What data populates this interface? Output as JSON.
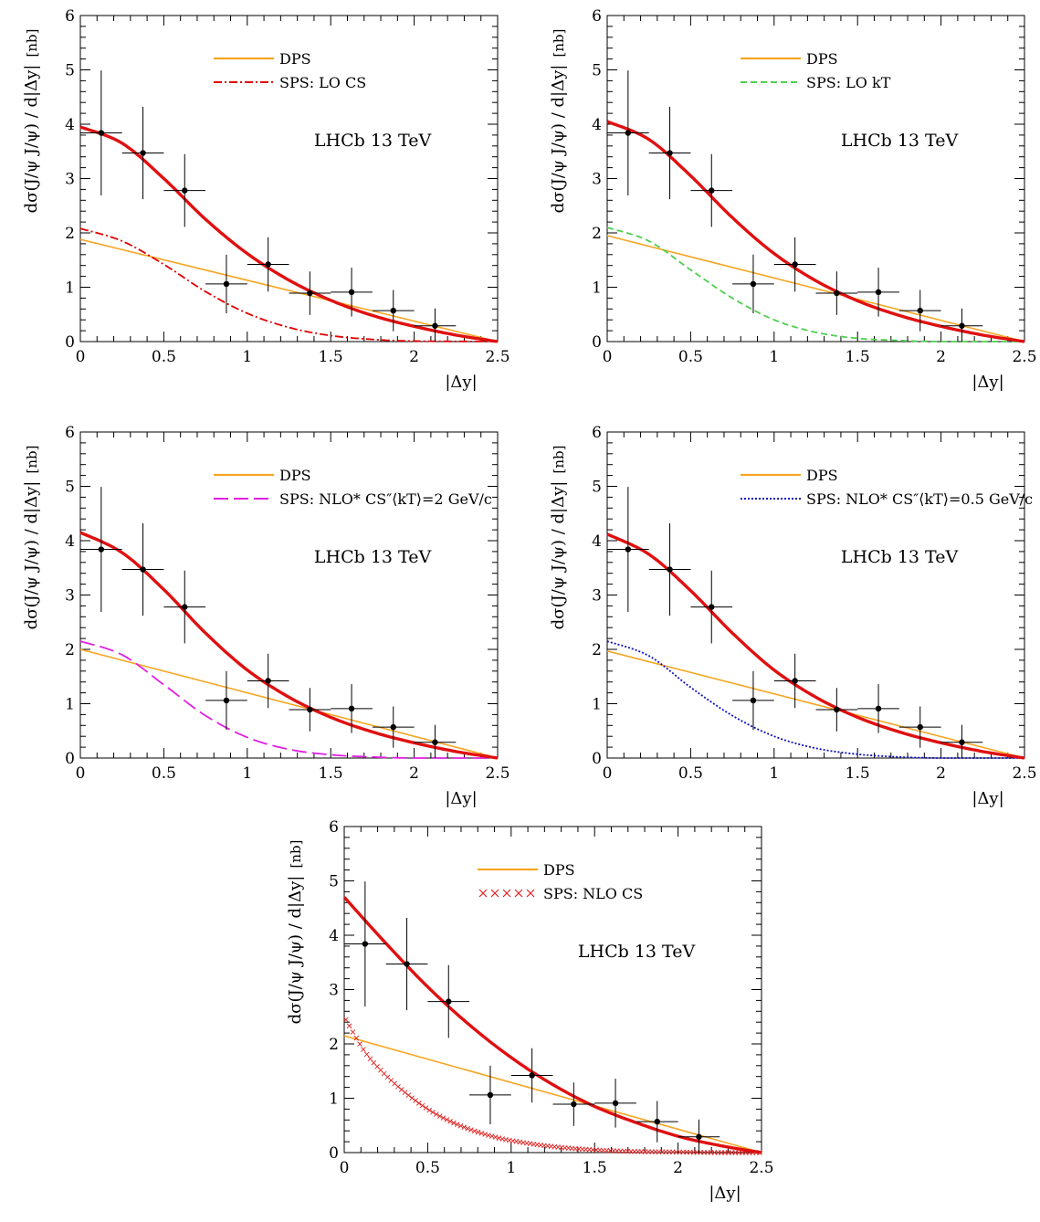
{
  "chart_data": [
    {
      "type": "line",
      "ylabel": "dσ(J/ψ J/ψ) / d|Δy|",
      "yunit": "[nb]",
      "xlabel": "|Δy|",
      "annotation": "LHCb 13 TeV",
      "xlim": [
        0,
        2.5
      ],
      "ylim": [
        0,
        6
      ],
      "xticks": [
        "0",
        "0.5",
        "1",
        "1.5",
        "2",
        "2.5"
      ],
      "yticks": [
        "0",
        "1",
        "2",
        "3",
        "4",
        "5",
        "6"
      ],
      "legend": [
        {
          "label": "DPS",
          "color": "#f5a623",
          "style": "solid"
        },
        {
          "label": "SPS: LO CS",
          "color": "#e00000",
          "style": "dashdot"
        }
      ],
      "data_points": {
        "x": [
          0.125,
          0.375,
          0.625,
          0.875,
          1.125,
          1.375,
          1.625,
          1.875,
          2.125
        ],
        "y": [
          3.84,
          3.47,
          2.78,
          1.06,
          1.42,
          0.89,
          0.91,
          0.57,
          0.29
        ],
        "yerr": [
          1.15,
          0.85,
          0.67,
          0.54,
          0.5,
          0.4,
          0.45,
          0.38,
          0.32
        ],
        "xerr": 0.125
      },
      "series": [
        {
          "name": "Total",
          "color": "#e01010",
          "style": "thick",
          "x": [
            0,
            0.25,
            0.5,
            0.75,
            1.0,
            1.25,
            1.5,
            1.75,
            2.0,
            2.25,
            2.5
          ],
          "y": [
            3.95,
            3.65,
            3.0,
            2.25,
            1.62,
            1.13,
            0.76,
            0.48,
            0.28,
            0.12,
            0.0
          ]
        },
        {
          "name": "DPS",
          "color": "#f5a623",
          "style": "solid",
          "x": [
            0,
            2.5
          ],
          "y": [
            1.88,
            0.0
          ]
        },
        {
          "name": "SPS: LO CS",
          "color": "#e00000",
          "style": "dashdot",
          "x": [
            0,
            0.25,
            0.5,
            0.75,
            1.0,
            1.25,
            1.5,
            1.75,
            2.0,
            2.5
          ],
          "y": [
            2.08,
            1.85,
            1.42,
            0.92,
            0.52,
            0.26,
            0.11,
            0.04,
            0.01,
            0.0
          ]
        }
      ]
    },
    {
      "type": "line",
      "ylabel": "dσ(J/ψ J/ψ) / d|Δy|",
      "yunit": "[nb]",
      "xlabel": "|Δy|",
      "annotation": "LHCb 13 TeV",
      "xlim": [
        0,
        2.5
      ],
      "ylim": [
        0,
        6
      ],
      "xticks": [
        "0",
        "0.5",
        "1",
        "1.5",
        "2",
        "2.5"
      ],
      "yticks": [
        "0",
        "1",
        "2",
        "3",
        "4",
        "5",
        "6"
      ],
      "legend": [
        {
          "label": "DPS",
          "color": "#f5a623",
          "style": "solid"
        },
        {
          "label": "SPS: LO kT",
          "color": "#4fcf4f",
          "style": "dashed"
        }
      ],
      "data_points": {
        "x": [
          0.125,
          0.375,
          0.625,
          0.875,
          1.125,
          1.375,
          1.625,
          1.875,
          2.125
        ],
        "y": [
          3.84,
          3.47,
          2.78,
          1.06,
          1.42,
          0.89,
          0.91,
          0.57,
          0.29
        ],
        "yerr": [
          1.15,
          0.85,
          0.67,
          0.54,
          0.5,
          0.4,
          0.45,
          0.38,
          0.32
        ],
        "xerr": 0.125
      },
      "series": [
        {
          "name": "Total",
          "color": "#e01010",
          "style": "thick",
          "x": [
            0,
            0.25,
            0.5,
            0.75,
            1.0,
            1.25,
            1.5,
            1.75,
            2.0,
            2.25,
            2.5
          ],
          "y": [
            4.05,
            3.72,
            3.05,
            2.28,
            1.62,
            1.12,
            0.75,
            0.48,
            0.28,
            0.12,
            0.0
          ]
        },
        {
          "name": "DPS",
          "color": "#f5a623",
          "style": "solid",
          "x": [
            0,
            2.5
          ],
          "y": [
            1.95,
            0.0
          ]
        },
        {
          "name": "SPS: LO kT",
          "color": "#4fcf4f",
          "style": "dashed",
          "x": [
            0,
            0.25,
            0.5,
            0.75,
            1.0,
            1.25,
            1.5,
            1.75,
            2.0,
            2.5
          ],
          "y": [
            2.1,
            1.85,
            1.32,
            0.8,
            0.4,
            0.17,
            0.06,
            0.02,
            0.0,
            0.0
          ]
        }
      ]
    },
    {
      "type": "line",
      "ylabel": "dσ(J/ψ J/ψ) / d|Δy|",
      "yunit": "[nb]",
      "xlabel": "|Δy|",
      "annotation": "LHCb 13 TeV",
      "xlim": [
        0,
        2.5
      ],
      "ylim": [
        0,
        6
      ],
      "xticks": [
        "0",
        "0.5",
        "1",
        "1.5",
        "2",
        "2.5"
      ],
      "yticks": [
        "0",
        "1",
        "2",
        "3",
        "4",
        "5",
        "6"
      ],
      "legend": [
        {
          "label": "DPS",
          "color": "#f5a623",
          "style": "solid"
        },
        {
          "label": "SPS: NLO* CS″⟨kT⟩=2 GeV/c",
          "color": "#e020e0",
          "style": "longdash"
        }
      ],
      "data_points": {
        "x": [
          0.125,
          0.375,
          0.625,
          0.875,
          1.125,
          1.375,
          1.625,
          1.875,
          2.125
        ],
        "y": [
          3.84,
          3.47,
          2.78,
          1.06,
          1.42,
          0.89,
          0.91,
          0.57,
          0.29
        ],
        "yerr": [
          1.15,
          0.85,
          0.67,
          0.54,
          0.5,
          0.4,
          0.45,
          0.38,
          0.32
        ],
        "xerr": 0.125
      },
      "series": [
        {
          "name": "Total",
          "color": "#e01010",
          "style": "thick",
          "x": [
            0,
            0.25,
            0.5,
            0.75,
            1.0,
            1.25,
            1.5,
            1.75,
            2.0,
            2.25,
            2.5
          ],
          "y": [
            4.15,
            3.78,
            3.1,
            2.3,
            1.62,
            1.12,
            0.75,
            0.48,
            0.28,
            0.12,
            0.0
          ]
        },
        {
          "name": "DPS",
          "color": "#f5a623",
          "style": "solid",
          "x": [
            0,
            2.5
          ],
          "y": [
            2.0,
            0.0
          ]
        },
        {
          "name": "SPS: NLO* CS″ ⟨kT⟩=2 GeV/c",
          "color": "#e020e0",
          "style": "longdash",
          "x": [
            0,
            0.25,
            0.5,
            0.75,
            1.0,
            1.25,
            1.5,
            1.75,
            2.0,
            2.5
          ],
          "y": [
            2.15,
            1.9,
            1.35,
            0.78,
            0.38,
            0.16,
            0.06,
            0.02,
            0.0,
            0.0
          ]
        }
      ]
    },
    {
      "type": "line",
      "ylabel": "dσ(J/ψ J/ψ) / d|Δy|",
      "yunit": "[nb]",
      "xlabel": "|Δy|",
      "annotation": "LHCb 13 TeV",
      "xlim": [
        0,
        2.5
      ],
      "ylim": [
        0,
        6
      ],
      "xticks": [
        "0",
        "0.5",
        "1",
        "1.5",
        "2",
        "2.5"
      ],
      "yticks": [
        "0",
        "1",
        "2",
        "3",
        "4",
        "5",
        "6"
      ],
      "legend": [
        {
          "label": "DPS",
          "color": "#f5a623",
          "style": "solid"
        },
        {
          "label": "SPS: NLO* CS″⟨kT⟩=0.5 GeV/c",
          "color": "#1010c0",
          "style": "dotted"
        }
      ],
      "data_points": {
        "x": [
          0.125,
          0.375,
          0.625,
          0.875,
          1.125,
          1.375,
          1.625,
          1.875,
          2.125
        ],
        "y": [
          3.84,
          3.47,
          2.78,
          1.06,
          1.42,
          0.89,
          0.91,
          0.57,
          0.29
        ],
        "yerr": [
          1.15,
          0.85,
          0.67,
          0.54,
          0.5,
          0.4,
          0.45,
          0.38,
          0.32
        ],
        "xerr": 0.125
      },
      "series": [
        {
          "name": "Total",
          "color": "#e01010",
          "style": "thick",
          "x": [
            0,
            0.25,
            0.5,
            0.75,
            1.0,
            1.25,
            1.5,
            1.75,
            2.0,
            2.25,
            2.5
          ],
          "y": [
            4.12,
            3.75,
            3.08,
            2.3,
            1.62,
            1.12,
            0.75,
            0.48,
            0.28,
            0.12,
            0.0
          ]
        },
        {
          "name": "DPS",
          "color": "#f5a623",
          "style": "solid",
          "x": [
            0,
            2.5
          ],
          "y": [
            1.97,
            0.0
          ]
        },
        {
          "name": "SPS: NLO* CS″ ⟨kT⟩=0.5 GeV/c",
          "color": "#1010c0",
          "style": "dotted",
          "x": [
            0,
            0.25,
            0.5,
            0.75,
            1.0,
            1.25,
            1.5,
            1.75,
            2.0,
            2.5
          ],
          "y": [
            2.15,
            1.88,
            1.3,
            0.78,
            0.4,
            0.18,
            0.07,
            0.02,
            0.0,
            0.0
          ]
        }
      ]
    },
    {
      "type": "line",
      "ylabel": "dσ(J/ψ J/ψ) / d|Δy|",
      "yunit": "[nb]",
      "xlabel": "|Δy|",
      "annotation": "LHCb 13 TeV",
      "xlim": [
        0,
        2.5
      ],
      "ylim": [
        0,
        6
      ],
      "xticks": [
        "0",
        "0.5",
        "1",
        "1.5",
        "2",
        "2.5"
      ],
      "yticks": [
        "0",
        "1",
        "2",
        "3",
        "4",
        "5",
        "6"
      ],
      "legend": [
        {
          "label": "DPS",
          "color": "#f5a623",
          "style": "solid"
        },
        {
          "label": "SPS: NLO CS",
          "color": "#e02020",
          "style": "crosses"
        }
      ],
      "data_points": {
        "x": [
          0.125,
          0.375,
          0.625,
          0.875,
          1.125,
          1.375,
          1.625,
          1.875,
          2.125
        ],
        "y": [
          3.84,
          3.47,
          2.78,
          1.06,
          1.42,
          0.89,
          0.91,
          0.57,
          0.29
        ],
        "yerr": [
          1.15,
          0.85,
          0.67,
          0.54,
          0.5,
          0.4,
          0.45,
          0.38,
          0.32
        ],
        "xerr": 0.125
      },
      "series": [
        {
          "name": "Total",
          "color": "#e01010",
          "style": "thick",
          "x": [
            0,
            0.25,
            0.5,
            0.75,
            1.0,
            1.25,
            1.5,
            1.75,
            2.0,
            2.25,
            2.5
          ],
          "y": [
            4.7,
            3.85,
            3.05,
            2.35,
            1.75,
            1.25,
            0.85,
            0.55,
            0.3,
            0.13,
            0.0
          ]
        },
        {
          "name": "DPS",
          "color": "#f5a623",
          "style": "solid",
          "x": [
            0,
            2.5
          ],
          "y": [
            2.15,
            0.0
          ]
        },
        {
          "name": "SPS: NLO CS",
          "color": "#e02020",
          "style": "crosses",
          "x": [
            0,
            0.125,
            0.25,
            0.375,
            0.5,
            0.625,
            0.75,
            0.875,
            1.0,
            1.25,
            1.5,
            1.75,
            2.0,
            2.25,
            2.5
          ],
          "y": [
            2.5,
            1.85,
            1.42,
            1.08,
            0.8,
            0.59,
            0.43,
            0.31,
            0.22,
            0.11,
            0.05,
            0.02,
            0.01,
            0.0,
            0.0
          ]
        }
      ]
    }
  ]
}
